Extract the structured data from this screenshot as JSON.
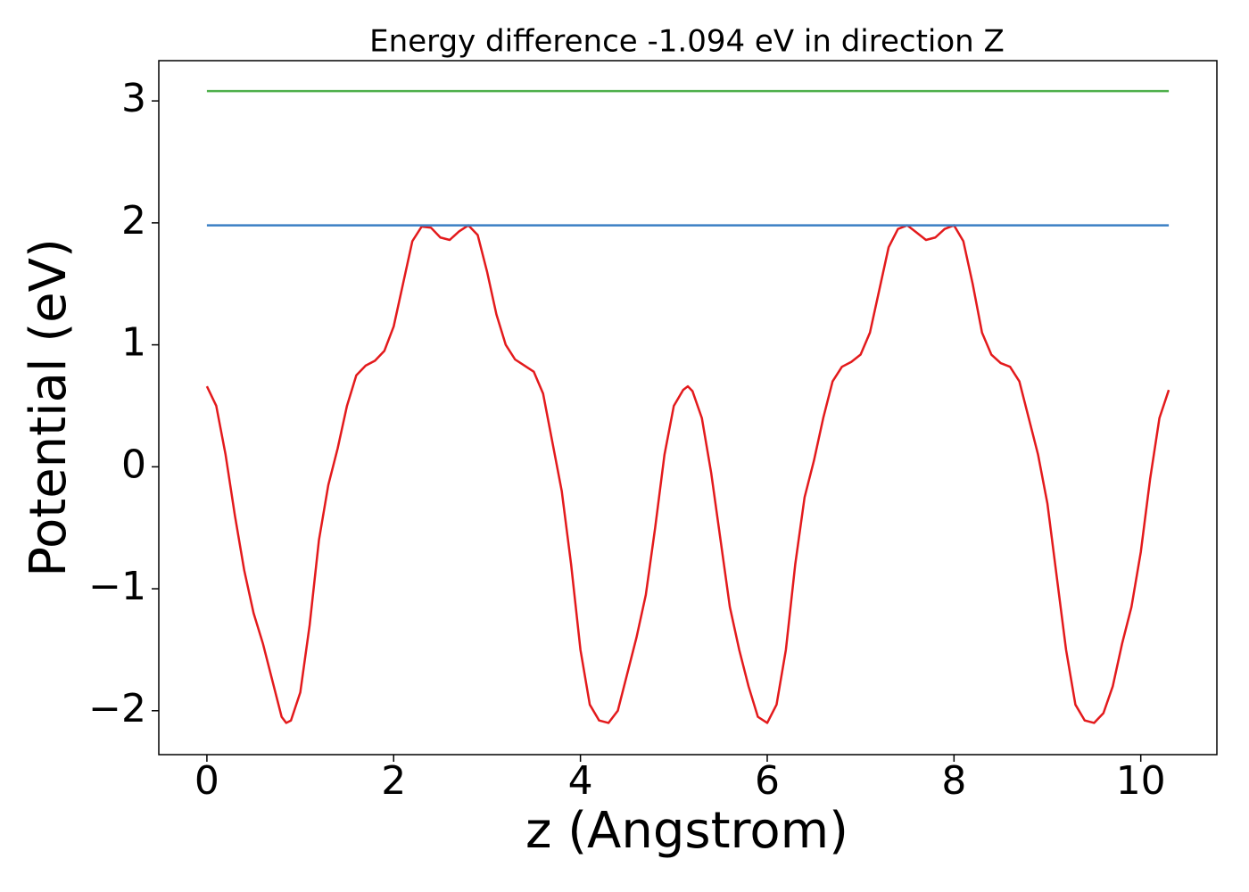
{
  "chart_data": {
    "type": "line",
    "title": "Energy difference -1.094 eV in direction Z",
    "x_label": "z (Angstrom)",
    "y_label": "Potential (eV)",
    "xlim": [
      -0.515,
      10.815
    ],
    "ylim": [
      -2.36,
      3.33
    ],
    "xticks": [
      0,
      2,
      4,
      6,
      8,
      10
    ],
    "yticks": [
      {
        "value": -2,
        "label": "−2"
      },
      {
        "value": -1,
        "label": "−1"
      },
      0,
      1,
      2,
      3
    ],
    "series": [
      {
        "color": "#e31a1c",
        "x": [
          0,
          0.1,
          0.2,
          0.3,
          0.4,
          0.5,
          0.6,
          0.7,
          0.8,
          0.85,
          0.9,
          1.0,
          1.1,
          1.2,
          1.3,
          1.4,
          1.5,
          1.6,
          1.7,
          1.8,
          1.9,
          2.0,
          2.1,
          2.2,
          2.3,
          2.4,
          2.5,
          2.6,
          2.7,
          2.8,
          2.9,
          3.0,
          3.1,
          3.2,
          3.3,
          3.4,
          3.5,
          3.6,
          3.7,
          3.8,
          3.9,
          4.0,
          4.1,
          4.2,
          4.3,
          4.4,
          4.5,
          4.6,
          4.7,
          4.8,
          4.9,
          5.0,
          5.1,
          5.15,
          5.2,
          5.3,
          5.4,
          5.5,
          5.6,
          5.7,
          5.8,
          5.9,
          6.0,
          6.1,
          6.2,
          6.3,
          6.4,
          6.5,
          6.6,
          6.7,
          6.8,
          6.9,
          7.0,
          7.1,
          7.2,
          7.3,
          7.4,
          7.5,
          7.6,
          7.7,
          7.8,
          7.9,
          8.0,
          8.1,
          8.2,
          8.3,
          8.4,
          8.5,
          8.6,
          8.7,
          8.8,
          8.9,
          9.0,
          9.1,
          9.2,
          9.3,
          9.4,
          9.5,
          9.6,
          9.7,
          9.8,
          9.9,
          10.0,
          10.1,
          10.2,
          10.3
        ],
        "values": [
          0.66,
          0.5,
          0.1,
          -0.4,
          -0.85,
          -1.2,
          -1.45,
          -1.75,
          -2.05,
          -2.1,
          -2.08,
          -1.85,
          -1.3,
          -0.6,
          -0.15,
          0.15,
          0.5,
          0.75,
          0.83,
          0.87,
          0.95,
          1.15,
          1.5,
          1.85,
          1.97,
          1.96,
          1.88,
          1.86,
          1.93,
          1.98,
          1.9,
          1.6,
          1.25,
          1.0,
          0.88,
          0.83,
          0.78,
          0.6,
          0.2,
          -0.2,
          -0.8,
          -1.5,
          -1.95,
          -2.08,
          -2.1,
          -2.0,
          -1.7,
          -1.4,
          -1.05,
          -0.5,
          0.1,
          0.5,
          0.63,
          0.66,
          0.62,
          0.4,
          -0.05,
          -0.6,
          -1.15,
          -1.5,
          -1.8,
          -2.05,
          -2.1,
          -1.95,
          -1.5,
          -0.8,
          -0.25,
          0.05,
          0.4,
          0.7,
          0.82,
          0.86,
          0.92,
          1.1,
          1.45,
          1.8,
          1.95,
          1.98,
          1.92,
          1.86,
          1.88,
          1.95,
          1.98,
          1.85,
          1.5,
          1.1,
          0.92,
          0.85,
          0.82,
          0.7,
          0.4,
          0.1,
          -0.3,
          -0.9,
          -1.5,
          -1.95,
          -2.08,
          -2.1,
          -2.02,
          -1.8,
          -1.45,
          -1.15,
          -0.7,
          -0.1,
          0.4,
          0.63
        ]
      },
      {
        "color": "#3a7fc4",
        "x": [
          0,
          10.3
        ],
        "values": [
          1.98,
          1.98
        ]
      },
      {
        "color": "#4daf4a",
        "x": [
          0,
          10.3
        ],
        "values": [
          3.08,
          3.08
        ]
      }
    ]
  }
}
